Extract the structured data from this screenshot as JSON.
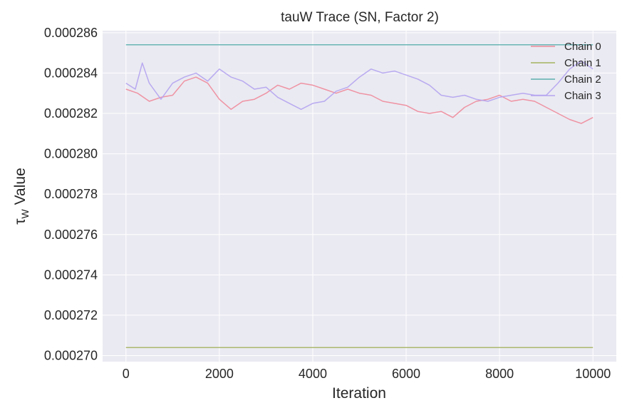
{
  "chart_data": {
    "type": "line",
    "title": "tauW Trace (SN, Factor 2)",
    "xlabel": "Iteration",
    "ylabel_symbol": "τ",
    "ylabel_subscript": "W",
    "ylabel_rest": " Value",
    "xlim": [
      -500,
      10500
    ],
    "ylim": [
      0.0002697,
      0.0002861
    ],
    "xticks": [
      0,
      2000,
      4000,
      6000,
      8000,
      10000
    ],
    "xtick_labels": [
      "0",
      "2000",
      "4000",
      "6000",
      "8000",
      "10000"
    ],
    "yticks": [
      0.00027,
      0.000272,
      0.000274,
      0.000276,
      0.000278,
      0.00028,
      0.000282,
      0.000284,
      0.000286
    ],
    "ytick_labels": [
      "0.000270",
      "0.000272",
      "0.000274",
      "0.000276",
      "0.000278",
      "0.000280",
      "0.000282",
      "0.000284",
      "0.000286"
    ],
    "grid": true,
    "legend_position": "top-right",
    "colors": {
      "background": "#eaeaf2",
      "grid": "#ffffff"
    },
    "series": [
      {
        "name": "Chain 0",
        "color": "#f08a9a",
        "x": [
          0,
          250,
          500,
          750,
          1000,
          1250,
          1500,
          1750,
          2000,
          2250,
          2500,
          2750,
          3000,
          3250,
          3500,
          3750,
          4000,
          4250,
          4500,
          4750,
          5000,
          5250,
          5500,
          5750,
          6000,
          6250,
          6500,
          6750,
          7000,
          7250,
          7500,
          7750,
          8000,
          8250,
          8500,
          8750,
          9000,
          9250,
          9500,
          9750,
          10000
        ],
        "y": [
          0.0002832,
          0.000283,
          0.0002826,
          0.0002828,
          0.0002829,
          0.0002836,
          0.0002838,
          0.0002835,
          0.0002827,
          0.0002822,
          0.0002826,
          0.0002827,
          0.000283,
          0.0002834,
          0.0002832,
          0.0002835,
          0.0002834,
          0.0002832,
          0.000283,
          0.0002832,
          0.000283,
          0.0002829,
          0.0002826,
          0.0002825,
          0.0002824,
          0.0002821,
          0.000282,
          0.0002821,
          0.0002818,
          0.0002823,
          0.0002826,
          0.0002827,
          0.0002829,
          0.0002826,
          0.0002827,
          0.0002826,
          0.0002823,
          0.000282,
          0.0002817,
          0.0002815,
          0.0002818
        ]
      },
      {
        "name": "Chain 1",
        "color": "#a5b360",
        "x": [
          0,
          10000
        ],
        "y": [
          0.0002704,
          0.0002704
        ]
      },
      {
        "name": "Chain 2",
        "color": "#5cafae",
        "x": [
          0,
          10000
        ],
        "y": [
          0.0002854,
          0.0002854
        ]
      },
      {
        "name": "Chain 3",
        "color": "#b4a3ef",
        "x": [
          0,
          200,
          350,
          500,
          750,
          1000,
          1250,
          1500,
          1750,
          2000,
          2250,
          2500,
          2750,
          3000,
          3250,
          3500,
          3750,
          4000,
          4250,
          4500,
          4750,
          5000,
          5250,
          5500,
          5750,
          6000,
          6250,
          6500,
          6750,
          7000,
          7250,
          7500,
          7750,
          8000,
          8250,
          8500,
          8750,
          9000,
          9250,
          9500,
          9750,
          10000
        ],
        "y": [
          0.0002835,
          0.0002832,
          0.0002845,
          0.0002835,
          0.0002827,
          0.0002835,
          0.0002838,
          0.000284,
          0.0002836,
          0.0002842,
          0.0002838,
          0.0002836,
          0.0002832,
          0.0002833,
          0.0002828,
          0.0002825,
          0.0002822,
          0.0002825,
          0.0002826,
          0.0002831,
          0.0002833,
          0.0002838,
          0.0002842,
          0.000284,
          0.0002841,
          0.0002839,
          0.0002837,
          0.0002834,
          0.0002829,
          0.0002828,
          0.0002829,
          0.0002827,
          0.0002826,
          0.0002828,
          0.0002829,
          0.000283,
          0.0002829,
          0.0002829,
          0.0002835,
          0.0002842,
          0.0002846,
          0.0002842
        ]
      }
    ]
  }
}
